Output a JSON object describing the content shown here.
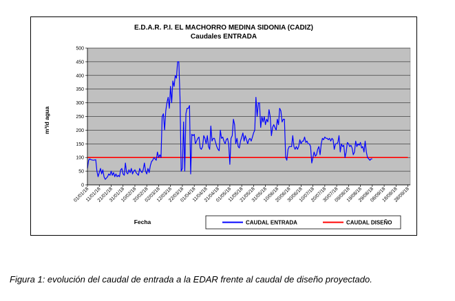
{
  "caption": "Figura 1: evolución del caudal de entrada a la EDAR frente al caudal de diseño proyectado.",
  "chart_data": {
    "type": "line",
    "title": "E.D.A.R. P.I. EL MACHORRO MEDINA SIDONIA (CADIZ)",
    "subtitle": "Caudales ENTRADA",
    "xlabel": "Fecha",
    "ylabel": "m³/d agua",
    "ylim": [
      0,
      500
    ],
    "yticks": [
      0,
      50,
      100,
      150,
      200,
      250,
      300,
      350,
      400,
      450,
      500
    ],
    "grid": true,
    "legend_position": "bottom-right",
    "x_ticks": [
      "01/01/18",
      "11/01/18",
      "21/01/18",
      "31/01/18",
      "10/02/18",
      "20/02/18",
      "02/03/18",
      "12/03/18",
      "22/03/18",
      "01/04/18",
      "11/04/18",
      "21/04/18",
      "01/05/18",
      "11/05/18",
      "21/05/18",
      "31/05/18",
      "10/06/18",
      "20/06/18",
      "30/06/18",
      "10/07/18",
      "20/07/18",
      "30/07/18",
      "09/08/18",
      "19/08/18",
      "29/08/18",
      "08/09/18",
      "18/09/18",
      "28/09/18"
    ],
    "x_range": [
      "01/01/18",
      "30/09/18"
    ],
    "colors": {
      "plot_bg": "#c0c0c0",
      "entrada": "#0000ff",
      "diseno": "#ff0000"
    },
    "series": [
      {
        "name": "CAUDAL ENTRADA",
        "color": "#0000ff",
        "points": [
          [
            0,
            60
          ],
          [
            1,
            90
          ],
          [
            2,
            95
          ],
          [
            3,
            92
          ],
          [
            5,
            90
          ],
          [
            7,
            92
          ],
          [
            8,
            50
          ],
          [
            9,
            30
          ],
          [
            10,
            45
          ],
          [
            11,
            60
          ],
          [
            12,
            40
          ],
          [
            13,
            55
          ],
          [
            14,
            30
          ],
          [
            15,
            20
          ],
          [
            16,
            25
          ],
          [
            17,
            30
          ],
          [
            18,
            40
          ],
          [
            19,
            35
          ],
          [
            20,
            50
          ],
          [
            21,
            35
          ],
          [
            22,
            45
          ],
          [
            23,
            30
          ],
          [
            24,
            40
          ],
          [
            25,
            30
          ],
          [
            26,
            35
          ],
          [
            27,
            30
          ],
          [
            28,
            55
          ],
          [
            29,
            60
          ],
          [
            30,
            40
          ],
          [
            31,
            35
          ],
          [
            32,
            80
          ],
          [
            33,
            45
          ],
          [
            34,
            40
          ],
          [
            35,
            55
          ],
          [
            36,
            45
          ],
          [
            37,
            60
          ],
          [
            38,
            40
          ],
          [
            39,
            50
          ],
          [
            40,
            55
          ],
          [
            41,
            45
          ],
          [
            42,
            40
          ],
          [
            43,
            35
          ],
          [
            44,
            60
          ],
          [
            45,
            50
          ],
          [
            46,
            45
          ],
          [
            47,
            55
          ],
          [
            48,
            80
          ],
          [
            49,
            50
          ],
          [
            50,
            40
          ],
          [
            51,
            60
          ],
          [
            52,
            45
          ],
          [
            53,
            70
          ],
          [
            54,
            85
          ],
          [
            55,
            90
          ],
          [
            56,
            100
          ],
          [
            57,
            95
          ],
          [
            58,
            90
          ],
          [
            59,
            120
          ],
          [
            60,
            100
          ],
          [
            61,
            110
          ],
          [
            62,
            100
          ],
          [
            63,
            250
          ],
          [
            64,
            260
          ],
          [
            65,
            200
          ],
          [
            66,
            270
          ],
          [
            67,
            300
          ],
          [
            68,
            320
          ],
          [
            69,
            280
          ],
          [
            70,
            360
          ],
          [
            71,
            300
          ],
          [
            72,
            380
          ],
          [
            73,
            360
          ],
          [
            74,
            400
          ],
          [
            75,
            390
          ],
          [
            76,
            450
          ],
          [
            77,
            450
          ],
          [
            78,
            320
          ],
          [
            79,
            50
          ],
          [
            80,
            60
          ],
          [
            81,
            230
          ],
          [
            82,
            50
          ],
          [
            83,
            260
          ],
          [
            84,
            280
          ],
          [
            85,
            280
          ],
          [
            86,
            290
          ],
          [
            87,
            40
          ],
          [
            88,
            185
          ],
          [
            89,
            180
          ],
          [
            90,
            185
          ],
          [
            91,
            150
          ],
          [
            92,
            160
          ],
          [
            93,
            170
          ],
          [
            94,
            175
          ],
          [
            95,
            135
          ],
          [
            96,
            130
          ],
          [
            97,
            140
          ],
          [
            98,
            180
          ],
          [
            99,
            170
          ],
          [
            100,
            150
          ],
          [
            101,
            180
          ],
          [
            102,
            140
          ],
          [
            103,
            130
          ],
          [
            104,
            215
          ],
          [
            105,
            160
          ],
          [
            106,
            170
          ],
          [
            107,
            170
          ],
          [
            108,
            155
          ],
          [
            109,
            140
          ],
          [
            110,
            130
          ],
          [
            111,
            125
          ],
          [
            112,
            200
          ],
          [
            113,
            170
          ],
          [
            114,
            175
          ],
          [
            115,
            160
          ],
          [
            116,
            150
          ],
          [
            117,
            165
          ],
          [
            118,
            170
          ],
          [
            119,
            150
          ],
          [
            120,
            75
          ],
          [
            121,
            170
          ],
          [
            122,
            180
          ],
          [
            123,
            240
          ],
          [
            124,
            220
          ],
          [
            125,
            150
          ],
          [
            126,
            170
          ],
          [
            127,
            140
          ],
          [
            128,
            135
          ],
          [
            129,
            160
          ],
          [
            130,
            175
          ],
          [
            131,
            190
          ],
          [
            132,
            160
          ],
          [
            133,
            180
          ],
          [
            134,
            165
          ],
          [
            135,
            150
          ],
          [
            136,
            165
          ],
          [
            137,
            170
          ],
          [
            138,
            160
          ],
          [
            139,
            175
          ],
          [
            140,
            190
          ],
          [
            141,
            200
          ],
          [
            142,
            320
          ],
          [
            143,
            250
          ],
          [
            144,
            300
          ],
          [
            145,
            300
          ],
          [
            146,
            210
          ],
          [
            147,
            250
          ],
          [
            148,
            230
          ],
          [
            149,
            250
          ],
          [
            150,
            220
          ],
          [
            151,
            240
          ],
          [
            152,
            230
          ],
          [
            153,
            275
          ],
          [
            154,
            250
          ],
          [
            155,
            180
          ],
          [
            156,
            210
          ],
          [
            157,
            220
          ],
          [
            158,
            210
          ],
          [
            159,
            200
          ],
          [
            160,
            240
          ],
          [
            161,
            220
          ],
          [
            162,
            280
          ],
          [
            163,
            270
          ],
          [
            164,
            230
          ],
          [
            165,
            240
          ],
          [
            166,
            240
          ],
          [
            167,
            100
          ],
          [
            168,
            90
          ],
          [
            169,
            130
          ],
          [
            170,
            140
          ],
          [
            171,
            140
          ],
          [
            172,
            140
          ],
          [
            173,
            180
          ],
          [
            174,
            140
          ],
          [
            175,
            130
          ],
          [
            176,
            140
          ],
          [
            177,
            130
          ],
          [
            178,
            140
          ],
          [
            179,
            165
          ],
          [
            180,
            150
          ],
          [
            181,
            160
          ],
          [
            182,
            160
          ],
          [
            183,
            175
          ],
          [
            184,
            155
          ],
          [
            185,
            160
          ],
          [
            186,
            150
          ],
          [
            187,
            150
          ],
          [
            188,
            140
          ],
          [
            189,
            80
          ],
          [
            190,
            100
          ],
          [
            191,
            120
          ],
          [
            192,
            105
          ],
          [
            193,
            110
          ],
          [
            194,
            130
          ],
          [
            195,
            140
          ],
          [
            196,
            110
          ],
          [
            197,
            150
          ],
          [
            198,
            170
          ],
          [
            199,
            165
          ],
          [
            200,
            175
          ],
          [
            201,
            170
          ],
          [
            202,
            170
          ],
          [
            203,
            165
          ],
          [
            204,
            170
          ],
          [
            205,
            160
          ],
          [
            206,
            170
          ],
          [
            207,
            165
          ],
          [
            208,
            130
          ],
          [
            209,
            150
          ],
          [
            210,
            150
          ],
          [
            211,
            155
          ],
          [
            212,
            180
          ],
          [
            213,
            120
          ],
          [
            214,
            150
          ],
          [
            215,
            140
          ],
          [
            216,
            145
          ],
          [
            217,
            100
          ],
          [
            218,
            120
          ],
          [
            219,
            155
          ],
          [
            220,
            150
          ],
          [
            221,
            140
          ],
          [
            222,
            145
          ],
          [
            223,
            135
          ],
          [
            224,
            110
          ],
          [
            225,
            120
          ],
          [
            226,
            160
          ],
          [
            227,
            140
          ],
          [
            228,
            150
          ],
          [
            229,
            145
          ],
          [
            230,
            155
          ],
          [
            231,
            135
          ],
          [
            232,
            140
          ],
          [
            233,
            120
          ],
          [
            234,
            160
          ],
          [
            235,
            120
          ],
          [
            236,
            100
          ],
          [
            237,
            95
          ],
          [
            238,
            90
          ],
          [
            239,
            95
          ],
          [
            240,
            95
          ]
        ]
      },
      {
        "name": "CAUDAL DISEÑO",
        "color": "#ff0000",
        "points": [
          [
            0,
            100
          ],
          [
            270,
            100
          ]
        ]
      }
    ]
  }
}
